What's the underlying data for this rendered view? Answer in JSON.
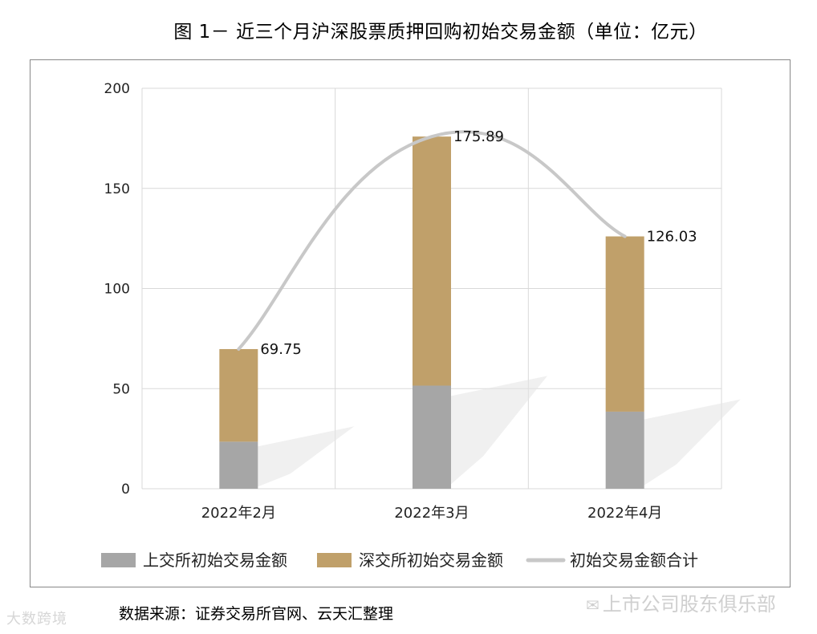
{
  "title": "图 1－ 近三个月沪深股票质押回购初始交易金额（单位：亿元）",
  "source": "数据来源：证券交易所官网、云天汇整理",
  "watermark_left": "大数跨境",
  "watermark_right": "上市公司股东俱乐部",
  "colors": {
    "sse": "#a6a6a6",
    "szse": "#c0a06a",
    "total": "#c8c8c8",
    "grid": "#d9d9d9"
  },
  "chart_data": {
    "type": "bar",
    "stacked": true,
    "categories": [
      "2022年2月",
      "2022年3月",
      "2022年4月"
    ],
    "series": [
      {
        "name": "上交所初始交易金额",
        "values": [
          23.5,
          51.5,
          38.5
        ]
      },
      {
        "name": "深交所初始交易金额",
        "values": [
          46.25,
          124.39,
          87.53
        ]
      }
    ],
    "line": {
      "name": "初始交易金额合计",
      "values": [
        69.75,
        175.89,
        126.03
      ]
    },
    "data_labels": [
      "69.75",
      "175.89",
      "126.03"
    ],
    "ylim": [
      0,
      200
    ],
    "yticks": [
      0,
      50,
      100,
      150,
      200
    ],
    "grid": true,
    "legend": "bottom"
  }
}
